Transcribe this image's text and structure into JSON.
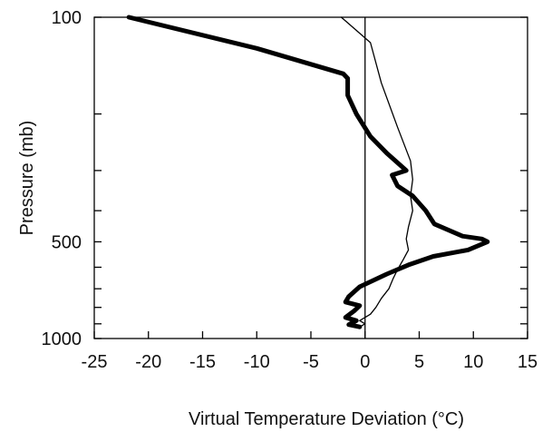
{
  "chart_data": {
    "type": "line",
    "title": "",
    "xlabel": "Virtual Temperature Deviation (°C)",
    "ylabel": "Pressure (mb)",
    "xlim": [
      -25,
      15
    ],
    "ylim": [
      1000,
      100
    ],
    "yscale": "log",
    "grid": false,
    "xticks": [
      -25,
      -20,
      -15,
      -10,
      -5,
      0,
      5,
      10,
      15
    ],
    "xtick_labels": [
      "-25",
      "-20",
      "-15",
      "-10",
      "-5",
      "0",
      "5",
      "10",
      "15"
    ],
    "yticks": [
      100,
      200,
      300,
      400,
      500,
      600,
      700,
      800,
      900,
      1000
    ],
    "ytick_labels": [
      "100",
      "",
      "",
      "",
      "500",
      "",
      "",
      "",
      "",
      "1000"
    ],
    "reference_line_x": 0,
    "colors": {
      "line": "#000000",
      "background": "#ffffff"
    },
    "series": [
      {
        "style": "thick",
        "points": [
          [
            -21.8,
            100
          ],
          [
            -10,
            125
          ],
          [
            -2,
            150
          ],
          [
            -1.6,
            155
          ],
          [
            -1.6,
            175
          ],
          [
            -0.8,
            200
          ],
          [
            0.5,
            235
          ],
          [
            2,
            265
          ],
          [
            3.8,
            300
          ],
          [
            2.5,
            310
          ],
          [
            3,
            335
          ],
          [
            4.4,
            360
          ],
          [
            5.6,
            400
          ],
          [
            6.4,
            440
          ],
          [
            9,
            480
          ],
          [
            10.8,
            490
          ],
          [
            11.3,
            500
          ],
          [
            9.5,
            530
          ],
          [
            6.3,
            555
          ],
          [
            4,
            590
          ],
          [
            2,
            630
          ],
          [
            -0.5,
            690
          ],
          [
            -1.5,
            740
          ],
          [
            -1.8,
            770
          ],
          [
            -0.5,
            790
          ],
          [
            -1,
            820
          ],
          [
            -1.8,
            860
          ],
          [
            -0.8,
            880
          ],
          [
            -1.5,
            905
          ],
          [
            -0.5,
            920
          ]
        ]
      },
      {
        "style": "thin",
        "points": [
          [
            -2.2,
            100
          ],
          [
            0.5,
            120
          ],
          [
            1.5,
            160
          ],
          [
            3,
            220
          ],
          [
            4.2,
            280
          ],
          [
            4.4,
            320
          ],
          [
            4.2,
            360
          ],
          [
            4.4,
            400
          ],
          [
            4,
            450
          ],
          [
            3.8,
            490
          ],
          [
            4,
            530
          ],
          [
            3.5,
            570
          ],
          [
            3,
            610
          ],
          [
            2.6,
            650
          ],
          [
            2.2,
            700
          ],
          [
            1.5,
            750
          ],
          [
            1,
            800
          ],
          [
            0.5,
            840
          ],
          [
            -0.5,
            880
          ],
          [
            0,
            900
          ],
          [
            -0.5,
            920
          ]
        ]
      }
    ]
  }
}
